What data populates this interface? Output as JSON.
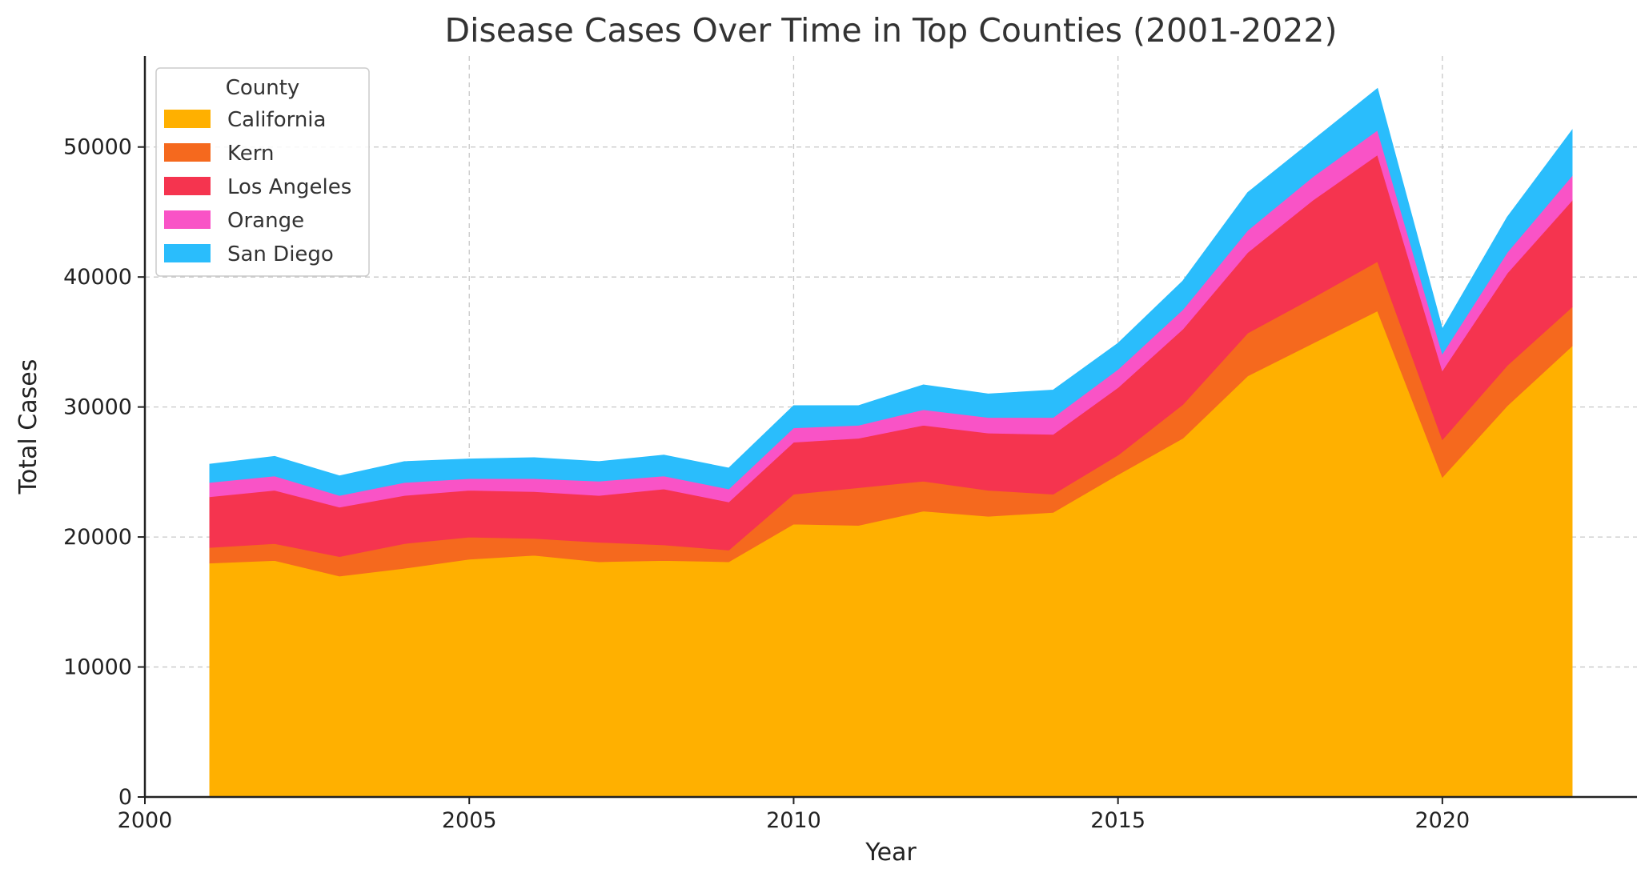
{
  "chart_data": {
    "type": "area",
    "stacked": true,
    "title": "Disease Cases Over Time in Top Counties (2001-2022)",
    "xlabel": "Year",
    "ylabel": "Total Cases",
    "xlim": [
      2000,
      2023
    ],
    "ylim": [
      0,
      57000
    ],
    "xticks": [
      2000,
      2005,
      2010,
      2015,
      2020
    ],
    "yticks": [
      0,
      10000,
      20000,
      30000,
      40000,
      50000
    ],
    "xtick_labels": [
      "2000",
      "2005",
      "2010",
      "2015",
      "2020"
    ],
    "ytick_labels": [
      "0",
      "10000",
      "20000",
      "30000",
      "40000",
      "50000"
    ],
    "grid": true,
    "legend": {
      "title": "County",
      "position": "top-left"
    },
    "x": [
      2001,
      2002,
      2003,
      2004,
      2005,
      2006,
      2007,
      2008,
      2009,
      2010,
      2011,
      2012,
      2013,
      2014,
      2015,
      2016,
      2017,
      2018,
      2019,
      2020,
      2021,
      2022
    ],
    "series": [
      {
        "name": "California",
        "color": "#ffb000",
        "values": [
          18000,
          18200,
          17000,
          17600,
          18300,
          18600,
          18100,
          18200,
          18100,
          21000,
          20900,
          22000,
          21600,
          21900,
          24800,
          27600,
          32400,
          34900,
          37400,
          24600,
          30100,
          34700
        ]
      },
      {
        "name": "Kern",
        "color": "#f5691e",
        "values": [
          1200,
          1300,
          1500,
          1900,
          1700,
          1300,
          1500,
          1200,
          900,
          2300,
          2900,
          2300,
          2000,
          1400,
          1500,
          2600,
          3300,
          3500,
          3800,
          2900,
          3100,
          3000
        ]
      },
      {
        "name": "Los Angeles",
        "color": "#f5344f",
        "values": [
          3900,
          4100,
          3800,
          3700,
          3600,
          3600,
          3600,
          4300,
          3700,
          4000,
          3800,
          4300,
          4400,
          4600,
          5200,
          5800,
          6200,
          7500,
          8200,
          5300,
          7100,
          8200
        ]
      },
      {
        "name": "Orange",
        "color": "#f953c6",
        "values": [
          1100,
          1100,
          900,
          1000,
          900,
          1000,
          1100,
          1000,
          1000,
          1100,
          1000,
          1200,
          1200,
          1300,
          1400,
          1500,
          1700,
          1800,
          1900,
          1300,
          1600,
          1900
        ]
      },
      {
        "name": "San Diego",
        "color": "#2abdfc",
        "values": [
          1400,
          1500,
          1500,
          1600,
          1500,
          1600,
          1500,
          1600,
          1600,
          1700,
          1500,
          1900,
          1800,
          2100,
          2000,
          2200,
          2900,
          2800,
          3200,
          1900,
          2700,
          3500
        ]
      }
    ]
  }
}
